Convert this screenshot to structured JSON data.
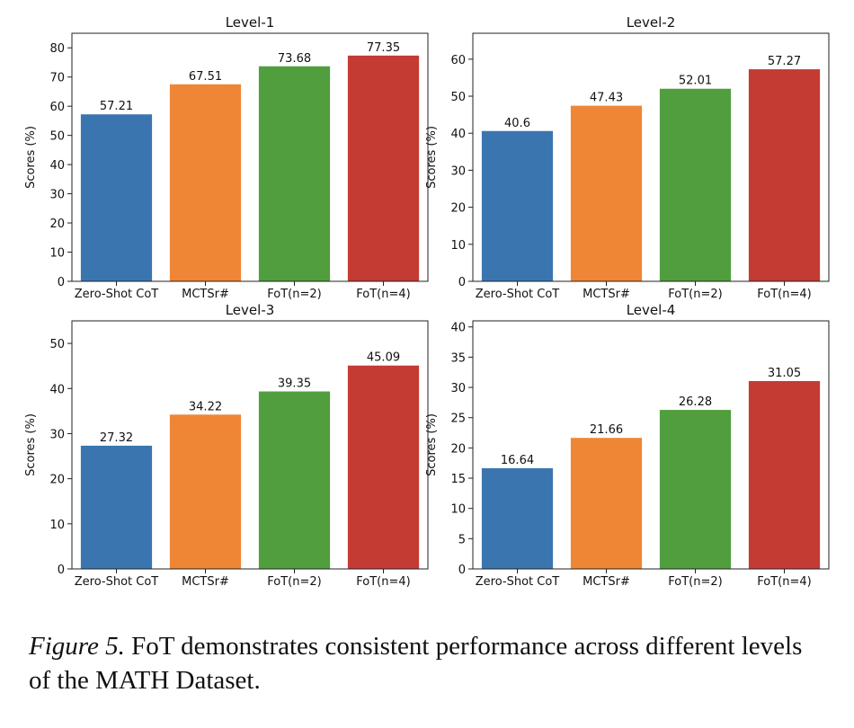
{
  "figure": {
    "caption_label": "Figure 5.",
    "caption_text": " FoT demonstrates consistent performance across different levels of the MATH Dataset."
  },
  "chart_data": [
    {
      "type": "bar",
      "title": "Level-1",
      "ylabel": "Scores (%)",
      "xlabel": "",
      "categories": [
        "Zero-Shot CoT",
        "MCTSr#",
        "FoT(n=2)",
        "FoT(n=4)"
      ],
      "values": [
        57.21,
        67.51,
        73.68,
        77.35
      ],
      "colors": [
        "#3a75b0",
        "#ef8636",
        "#519e3e",
        "#c43b33"
      ],
      "ylim": [
        0,
        85
      ],
      "yticks": [
        0,
        10,
        20,
        30,
        40,
        50,
        60,
        70,
        80
      ],
      "grid": false,
      "legend": "none"
    },
    {
      "type": "bar",
      "title": "Level-2",
      "ylabel": "Scores (%)",
      "xlabel": "",
      "categories": [
        "Zero-Shot CoT",
        "MCTSr#",
        "FoT(n=2)",
        "FoT(n=4)"
      ],
      "values": [
        40.6,
        47.43,
        52.01,
        57.27
      ],
      "colors": [
        "#3a75b0",
        "#ef8636",
        "#519e3e",
        "#c43b33"
      ],
      "ylim": [
        0,
        67
      ],
      "yticks": [
        0,
        10,
        20,
        30,
        40,
        50,
        60
      ],
      "grid": false,
      "legend": "none"
    },
    {
      "type": "bar",
      "title": "Level-3",
      "ylabel": "Scores (%)",
      "xlabel": "",
      "categories": [
        "Zero-Shot CoT",
        "MCTSr#",
        "FoT(n=2)",
        "FoT(n=4)"
      ],
      "values": [
        27.32,
        34.22,
        39.35,
        45.09
      ],
      "colors": [
        "#3a75b0",
        "#ef8636",
        "#519e3e",
        "#c43b33"
      ],
      "ylim": [
        0,
        55
      ],
      "yticks": [
        0,
        10,
        20,
        30,
        40,
        50
      ],
      "grid": false,
      "legend": "none"
    },
    {
      "type": "bar",
      "title": "Level-4",
      "ylabel": "Scores (%)",
      "xlabel": "",
      "categories": [
        "Zero-Shot CoT",
        "MCTSr#",
        "FoT(n=2)",
        "FoT(n=4)"
      ],
      "values": [
        16.64,
        21.66,
        26.28,
        31.05
      ],
      "colors": [
        "#3a75b0",
        "#ef8636",
        "#519e3e",
        "#c43b33"
      ],
      "ylim": [
        0,
        41
      ],
      "yticks": [
        0,
        5,
        10,
        15,
        20,
        25,
        30,
        35,
        40
      ],
      "grid": false,
      "legend": "none"
    }
  ]
}
